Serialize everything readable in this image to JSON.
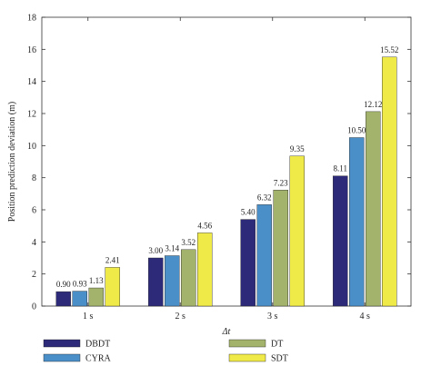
{
  "chart_data": {
    "type": "bar",
    "categories": [
      "1 s",
      "2 s",
      "3 s",
      "4 s"
    ],
    "series": [
      {
        "name": "DBDT",
        "color": "#2e2a7a",
        "values": [
          0.9,
          3.0,
          5.4,
          8.11
        ],
        "labels": [
          "0.90",
          "3.00",
          "5.40",
          "8.11"
        ]
      },
      {
        "name": "CYRA",
        "color": "#4a8fc7",
        "values": [
          0.93,
          3.14,
          6.32,
          10.5
        ],
        "labels": [
          "0.93",
          "3.14",
          "6.32",
          "10.50"
        ]
      },
      {
        "name": "DT",
        "color": "#a3b36b",
        "values": [
          1.13,
          3.52,
          7.23,
          12.12
        ],
        "labels": [
          "1.13",
          "3.52",
          "7.23",
          "12.12"
        ]
      },
      {
        "name": "SDT",
        "color": "#f0ea48",
        "values": [
          2.41,
          4.56,
          9.35,
          15.52
        ],
        "labels": [
          "2.41",
          "4.56",
          "9.35",
          "15.52"
        ]
      }
    ],
    "xlabel": "Δt",
    "ylabel": "Position prediction deviation (m)",
    "ylim": [
      0,
      18
    ],
    "yticks": [
      0,
      2,
      4,
      6,
      8,
      10,
      12,
      14,
      16,
      18
    ],
    "grid": false,
    "legend_position": "bottom"
  }
}
